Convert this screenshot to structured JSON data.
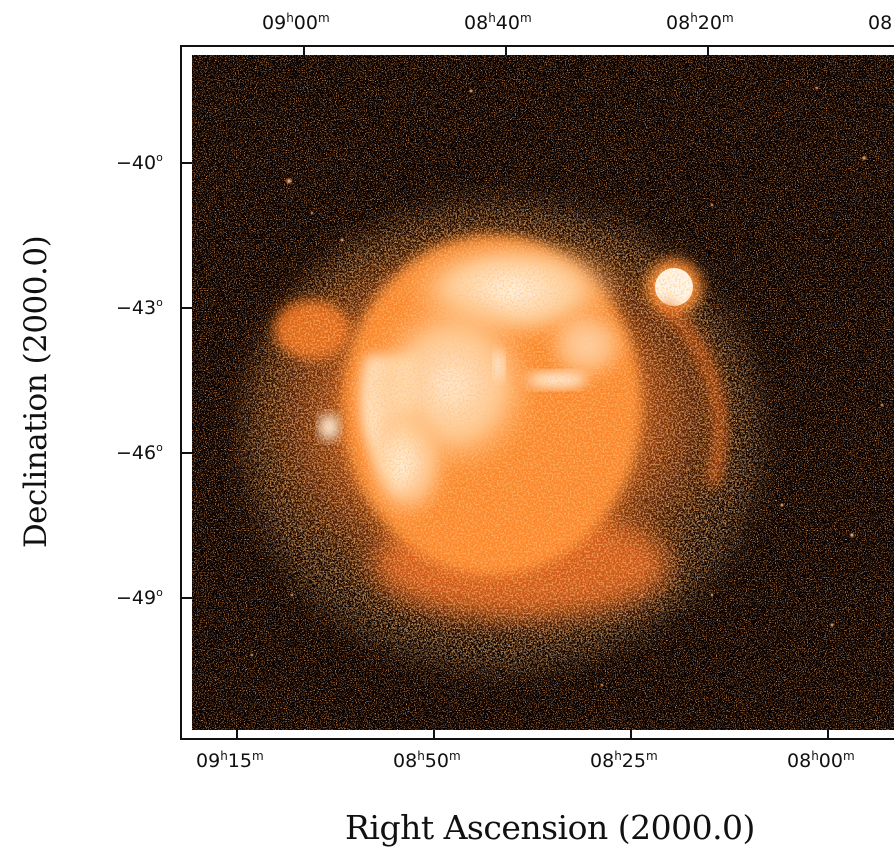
{
  "image": {
    "subject": "supernova-remnant-xray-image",
    "colors": {
      "background": "#0b0302",
      "noise": "#c04a12",
      "glow": "#ff7a1e",
      "bright": "#ffd3a4",
      "core": "#fff4e6"
    }
  },
  "axes": {
    "x_title": "Right Ascension (2000.0)",
    "y_title": "Declination (2000.0)",
    "top_ticks": [
      {
        "h": "09",
        "m": "00"
      },
      {
        "h": "08",
        "m": "40"
      },
      {
        "h": "08",
        "m": "20"
      },
      {
        "h": "08",
        "m": ""
      }
    ],
    "bottom_ticks": [
      {
        "h": "09",
        "m": "15"
      },
      {
        "h": "08",
        "m": "50"
      },
      {
        "h": "08",
        "m": "25"
      },
      {
        "h": "08",
        "m": "00"
      }
    ],
    "dec_ticks": [
      {
        "deg": "−40",
        "unit": "o"
      },
      {
        "deg": "−43",
        "unit": "o"
      },
      {
        "deg": "−46",
        "unit": "o"
      },
      {
        "deg": "−49",
        "unit": "o"
      }
    ],
    "unit_h": "h",
    "unit_m": "m"
  }
}
